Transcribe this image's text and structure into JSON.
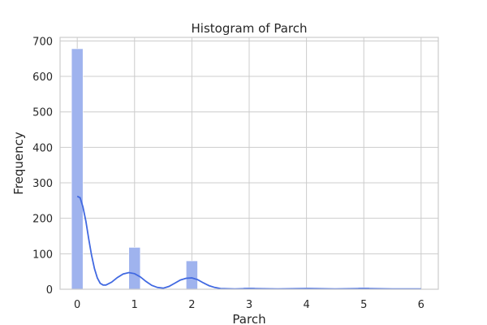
{
  "chart_data": {
    "type": "bar",
    "title": "Histogram of Parch",
    "xlabel": "Parch",
    "ylabel": "Frequency",
    "xlim": [
      -0.3,
      6.3
    ],
    "ylim": [
      0,
      710
    ],
    "xticks": [
      0,
      1,
      2,
      3,
      4,
      5,
      6
    ],
    "yticks": [
      0,
      100,
      200,
      300,
      400,
      500,
      600,
      700
    ],
    "grid": true,
    "bins": [
      {
        "x": 0,
        "value": 678
      },
      {
        "x": 1,
        "value": 118
      },
      {
        "x": 2,
        "value": 80
      },
      {
        "x": 3,
        "value": 5
      },
      {
        "x": 4,
        "value": 4
      },
      {
        "x": 5,
        "value": 5
      },
      {
        "x": 6,
        "value": 1
      }
    ],
    "kde": {
      "x": [
        0,
        0.05,
        0.1,
        0.15,
        0.2,
        0.25,
        0.3,
        0.35,
        0.4,
        0.45,
        0.5,
        0.6,
        0.7,
        0.8,
        0.9,
        1.0,
        1.1,
        1.2,
        1.3,
        1.4,
        1.5,
        1.6,
        1.7,
        1.8,
        1.9,
        2.0,
        2.1,
        2.2,
        2.3,
        2.4,
        2.5,
        2.75,
        3.0,
        3.5,
        4.0,
        4.5,
        5.0,
        5.5,
        6.0
      ],
      "y": [
        262,
        258,
        232,
        192,
        142,
        96,
        58,
        32,
        17,
        12,
        12,
        20,
        33,
        43,
        47,
        44,
        35,
        22,
        11,
        5,
        3,
        8,
        17,
        26,
        31,
        32,
        27,
        18,
        10,
        5,
        2,
        1,
        2,
        1,
        2,
        1,
        2,
        1,
        1
      ]
    },
    "colors": {
      "bar": "#9fb3ee",
      "line": "#4169e1"
    }
  }
}
